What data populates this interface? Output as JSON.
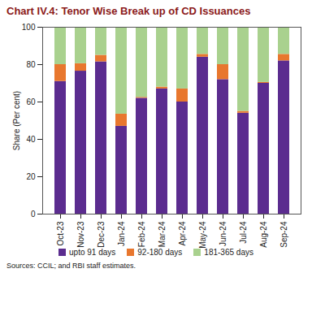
{
  "chart_data": {
    "type": "bar",
    "stacked": true,
    "title": "Chart IV.4: Tenor Wise Break up of CD Issuances",
    "caption": "Sources: CCIL; and RBI staff estimates.",
    "y_label": "Share (Per cent)",
    "categories": [
      "Oct-23",
      "Nov-23",
      "Dec-23",
      "Jan-24",
      "Feb-24",
      "Mar-24",
      "Apr-24",
      "May-24",
      "Jun-24",
      "Jul-24",
      "Aug-24",
      "Sep-24"
    ],
    "series": [
      {
        "name": "upto 91 days",
        "color": "#5b2c8f",
        "values": [
          71,
          76.5,
          81.5,
          47,
          62,
          67,
          60,
          84,
          72,
          54,
          70,
          82
        ]
      },
      {
        "name": "92-180 days",
        "color": "#e8772e",
        "values": [
          9,
          4,
          3.5,
          6.5,
          0.5,
          1,
          7,
          1.5,
          8,
          1,
          0.5,
          3.5
        ]
      },
      {
        "name": "181-365 days",
        "color": "#a9d18e",
        "values": [
          20,
          19.5,
          15,
          46.5,
          37.5,
          32,
          33,
          14.5,
          20,
          45,
          29.5,
          14.5
        ]
      }
    ],
    "ylim": [
      0,
      100
    ],
    "yticks": [
      0,
      20,
      40,
      60,
      80,
      100
    ],
    "grid": false,
    "legend": "bottom"
  }
}
